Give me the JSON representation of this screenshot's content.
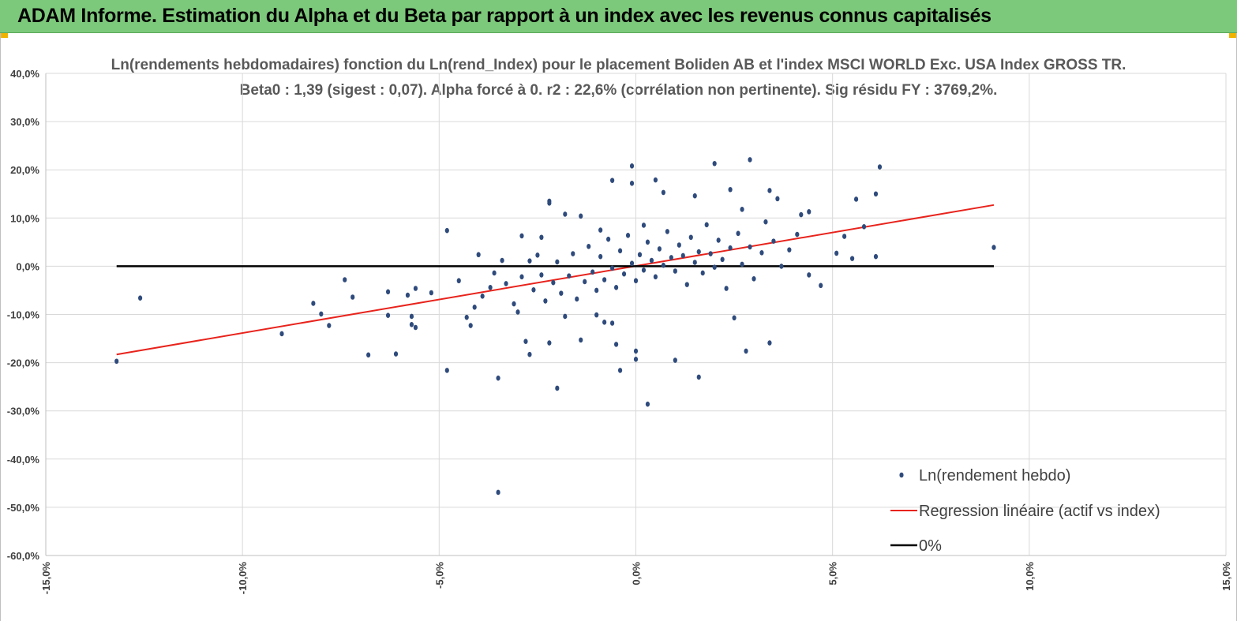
{
  "banner": {
    "title": "ADAM Informe. Estimation du Alpha et du Beta par rapport à un index avec les revenus connus capitalisés"
  },
  "colors": {
    "banner_bg": "#7dc97b",
    "points": "#2f4b7c",
    "regression": "#e8231c",
    "zero_line": "#000000",
    "corner_marker": "#f0b400"
  },
  "chart_data": {
    "type": "scatter",
    "title_line1": "Ln(rendements hebdomadaires) fonction du Ln(rend_Index) pour le placement Boliden AB et l'index MSCI WORLD Exc. USA Index GROSS TR.",
    "title_line2": "Beta0 : 1,39 (sigest : 0,07). Alpha forcé à 0. r2 : 22,6% (corrélation non pertinente). Sig résidu FY : 3769,2%.",
    "xlim": [
      -15,
      15
    ],
    "ylim": [
      -60,
      40
    ],
    "x_ticks": [
      "-15,0%",
      "-10,0%",
      "-5,0%",
      "0,0%",
      "5,0%",
      "10,0%",
      "15,0%"
    ],
    "y_ticks": [
      "40,0%",
      "30,0%",
      "20,0%",
      "10,0%",
      "0,0%",
      "-10,0%",
      "-20,0%",
      "-30,0%",
      "-40,0%",
      "-50,0%",
      "-60,0%"
    ],
    "grid": true,
    "legend_position": "bottom-right",
    "series": [
      {
        "name": "Ln(rendement hebdo)",
        "kind": "scatter",
        "points": [
          [
            -13.2,
            -19.7
          ],
          [
            -12.6,
            -6.6
          ],
          [
            -9.0,
            -14.0
          ],
          [
            -8.2,
            -7.7
          ],
          [
            -8.0,
            -9.9
          ],
          [
            -7.8,
            -12.3
          ],
          [
            -7.4,
            -2.8
          ],
          [
            -7.2,
            -6.4
          ],
          [
            -6.8,
            -18.4
          ],
          [
            -6.3,
            -5.3
          ],
          [
            -6.3,
            -10.2
          ],
          [
            -6.1,
            -18.2
          ],
          [
            -5.8,
            -6.0
          ],
          [
            -5.7,
            -10.4
          ],
          [
            -5.7,
            -12.1
          ],
          [
            -5.6,
            -4.6
          ],
          [
            -5.6,
            -12.7
          ],
          [
            -5.2,
            -5.5
          ],
          [
            -4.8,
            7.4
          ],
          [
            -4.8,
            -21.6
          ],
          [
            -4.3,
            -10.6
          ],
          [
            -4.0,
            2.4
          ],
          [
            -4.2,
            -12.3
          ],
          [
            -3.7,
            -4.4
          ],
          [
            -3.5,
            -23.2
          ],
          [
            -3.5,
            -46.9
          ],
          [
            -3.4,
            1.2
          ],
          [
            -3.0,
            -9.5
          ],
          [
            -2.9,
            6.3
          ],
          [
            -2.8,
            -15.6
          ],
          [
            -2.7,
            -18.3
          ],
          [
            -2.5,
            2.3
          ],
          [
            -2.4,
            6.0
          ],
          [
            -2.2,
            13.5
          ],
          [
            -2.2,
            -15.9
          ],
          [
            -2.2,
            13.1
          ],
          [
            -2.0,
            -25.3
          ],
          [
            -1.8,
            -10.4
          ],
          [
            -1.8,
            10.8
          ],
          [
            -1.4,
            -15.3
          ],
          [
            -1.4,
            10.4
          ],
          [
            -1.0,
            -10.1
          ],
          [
            -0.9,
            7.5
          ],
          [
            -0.8,
            -11.6
          ],
          [
            -0.6,
            17.8
          ],
          [
            -0.6,
            -11.8
          ],
          [
            -0.5,
            -16.2
          ],
          [
            -0.4,
            -21.6
          ],
          [
            -0.1,
            20.8
          ],
          [
            -0.1,
            17.2
          ],
          [
            0.0,
            -17.6
          ],
          [
            0.0,
            -19.3
          ],
          [
            0.2,
            8.5
          ],
          [
            0.3,
            -28.6
          ],
          [
            0.5,
            17.9
          ],
          [
            0.7,
            15.3
          ],
          [
            1.0,
            -19.5
          ],
          [
            1.5,
            14.6
          ],
          [
            1.6,
            -23.0
          ],
          [
            2.0,
            21.3
          ],
          [
            2.4,
            15.9
          ],
          [
            2.5,
            -10.7
          ],
          [
            2.7,
            11.8
          ],
          [
            2.8,
            -17.6
          ],
          [
            2.9,
            22.1
          ],
          [
            3.3,
            9.2
          ],
          [
            3.4,
            15.7
          ],
          [
            3.4,
            -15.9
          ],
          [
            3.6,
            14.0
          ],
          [
            4.2,
            10.7
          ],
          [
            4.4,
            11.3
          ],
          [
            4.4,
            -1.8
          ],
          [
            4.7,
            -4.0
          ],
          [
            5.1,
            2.7
          ],
          [
            5.3,
            6.2
          ],
          [
            5.5,
            1.6
          ],
          [
            5.6,
            13.9
          ],
          [
            5.8,
            8.2
          ],
          [
            6.1,
            15.0
          ],
          [
            6.2,
            20.6
          ],
          [
            6.1,
            2.0
          ],
          [
            9.1,
            3.9
          ],
          [
            -4.5,
            -3.0
          ],
          [
            -4.1,
            -8.5
          ],
          [
            -3.9,
            -6.2
          ],
          [
            -3.6,
            -1.4
          ],
          [
            -3.3,
            -3.6
          ],
          [
            -3.1,
            -7.8
          ],
          [
            -2.9,
            -2.2
          ],
          [
            -2.7,
            1.1
          ],
          [
            -2.6,
            -4.9
          ],
          [
            -2.4,
            -1.8
          ],
          [
            -2.3,
            -7.2
          ],
          [
            -2.1,
            -3.4
          ],
          [
            -2.0,
            0.9
          ],
          [
            -1.9,
            -5.6
          ],
          [
            -1.7,
            -2.0
          ],
          [
            -1.6,
            2.6
          ],
          [
            -1.5,
            -6.8
          ],
          [
            -1.3,
            -3.2
          ],
          [
            -1.2,
            4.1
          ],
          [
            -1.1,
            -1.2
          ],
          [
            -1.0,
            -5.0
          ],
          [
            -0.9,
            2.0
          ],
          [
            -0.8,
            -2.8
          ],
          [
            -0.7,
            5.6
          ],
          [
            -0.6,
            -0.4
          ],
          [
            -0.5,
            -4.4
          ],
          [
            -0.4,
            3.2
          ],
          [
            -0.3,
            -1.6
          ],
          [
            -0.2,
            6.4
          ],
          [
            -0.1,
            0.6
          ],
          [
            0.0,
            -3.0
          ],
          [
            0.1,
            2.4
          ],
          [
            0.2,
            -0.8
          ],
          [
            0.3,
            5.0
          ],
          [
            0.4,
            1.2
          ],
          [
            0.5,
            -2.2
          ],
          [
            0.6,
            3.6
          ],
          [
            0.7,
            0.2
          ],
          [
            0.8,
            7.2
          ],
          [
            0.9,
            1.8
          ],
          [
            1.0,
            -1.0
          ],
          [
            1.1,
            4.4
          ],
          [
            1.2,
            2.2
          ],
          [
            1.3,
            -3.8
          ],
          [
            1.4,
            6.0
          ],
          [
            1.5,
            0.8
          ],
          [
            1.6,
            3.0
          ],
          [
            1.7,
            -1.4
          ],
          [
            1.8,
            8.6
          ],
          [
            1.9,
            2.6
          ],
          [
            2.0,
            -0.2
          ],
          [
            2.1,
            5.4
          ],
          [
            2.2,
            1.4
          ],
          [
            2.3,
            -4.6
          ],
          [
            2.4,
            3.8
          ],
          [
            2.6,
            6.8
          ],
          [
            2.7,
            0.4
          ],
          [
            2.9,
            4.0
          ],
          [
            3.0,
            -2.6
          ],
          [
            3.2,
            2.8
          ],
          [
            3.5,
            5.2
          ],
          [
            3.7,
            0.0
          ],
          [
            3.9,
            3.4
          ],
          [
            4.1,
            6.6
          ]
        ]
      },
      {
        "name": "Regression linéaire (actif vs index)",
        "kind": "line",
        "points": [
          [
            -13.2,
            -18.3
          ],
          [
            9.1,
            12.7
          ]
        ]
      },
      {
        "name": "0%",
        "kind": "line",
        "points": [
          [
            -13.2,
            0
          ],
          [
            9.1,
            0
          ]
        ]
      }
    ]
  }
}
